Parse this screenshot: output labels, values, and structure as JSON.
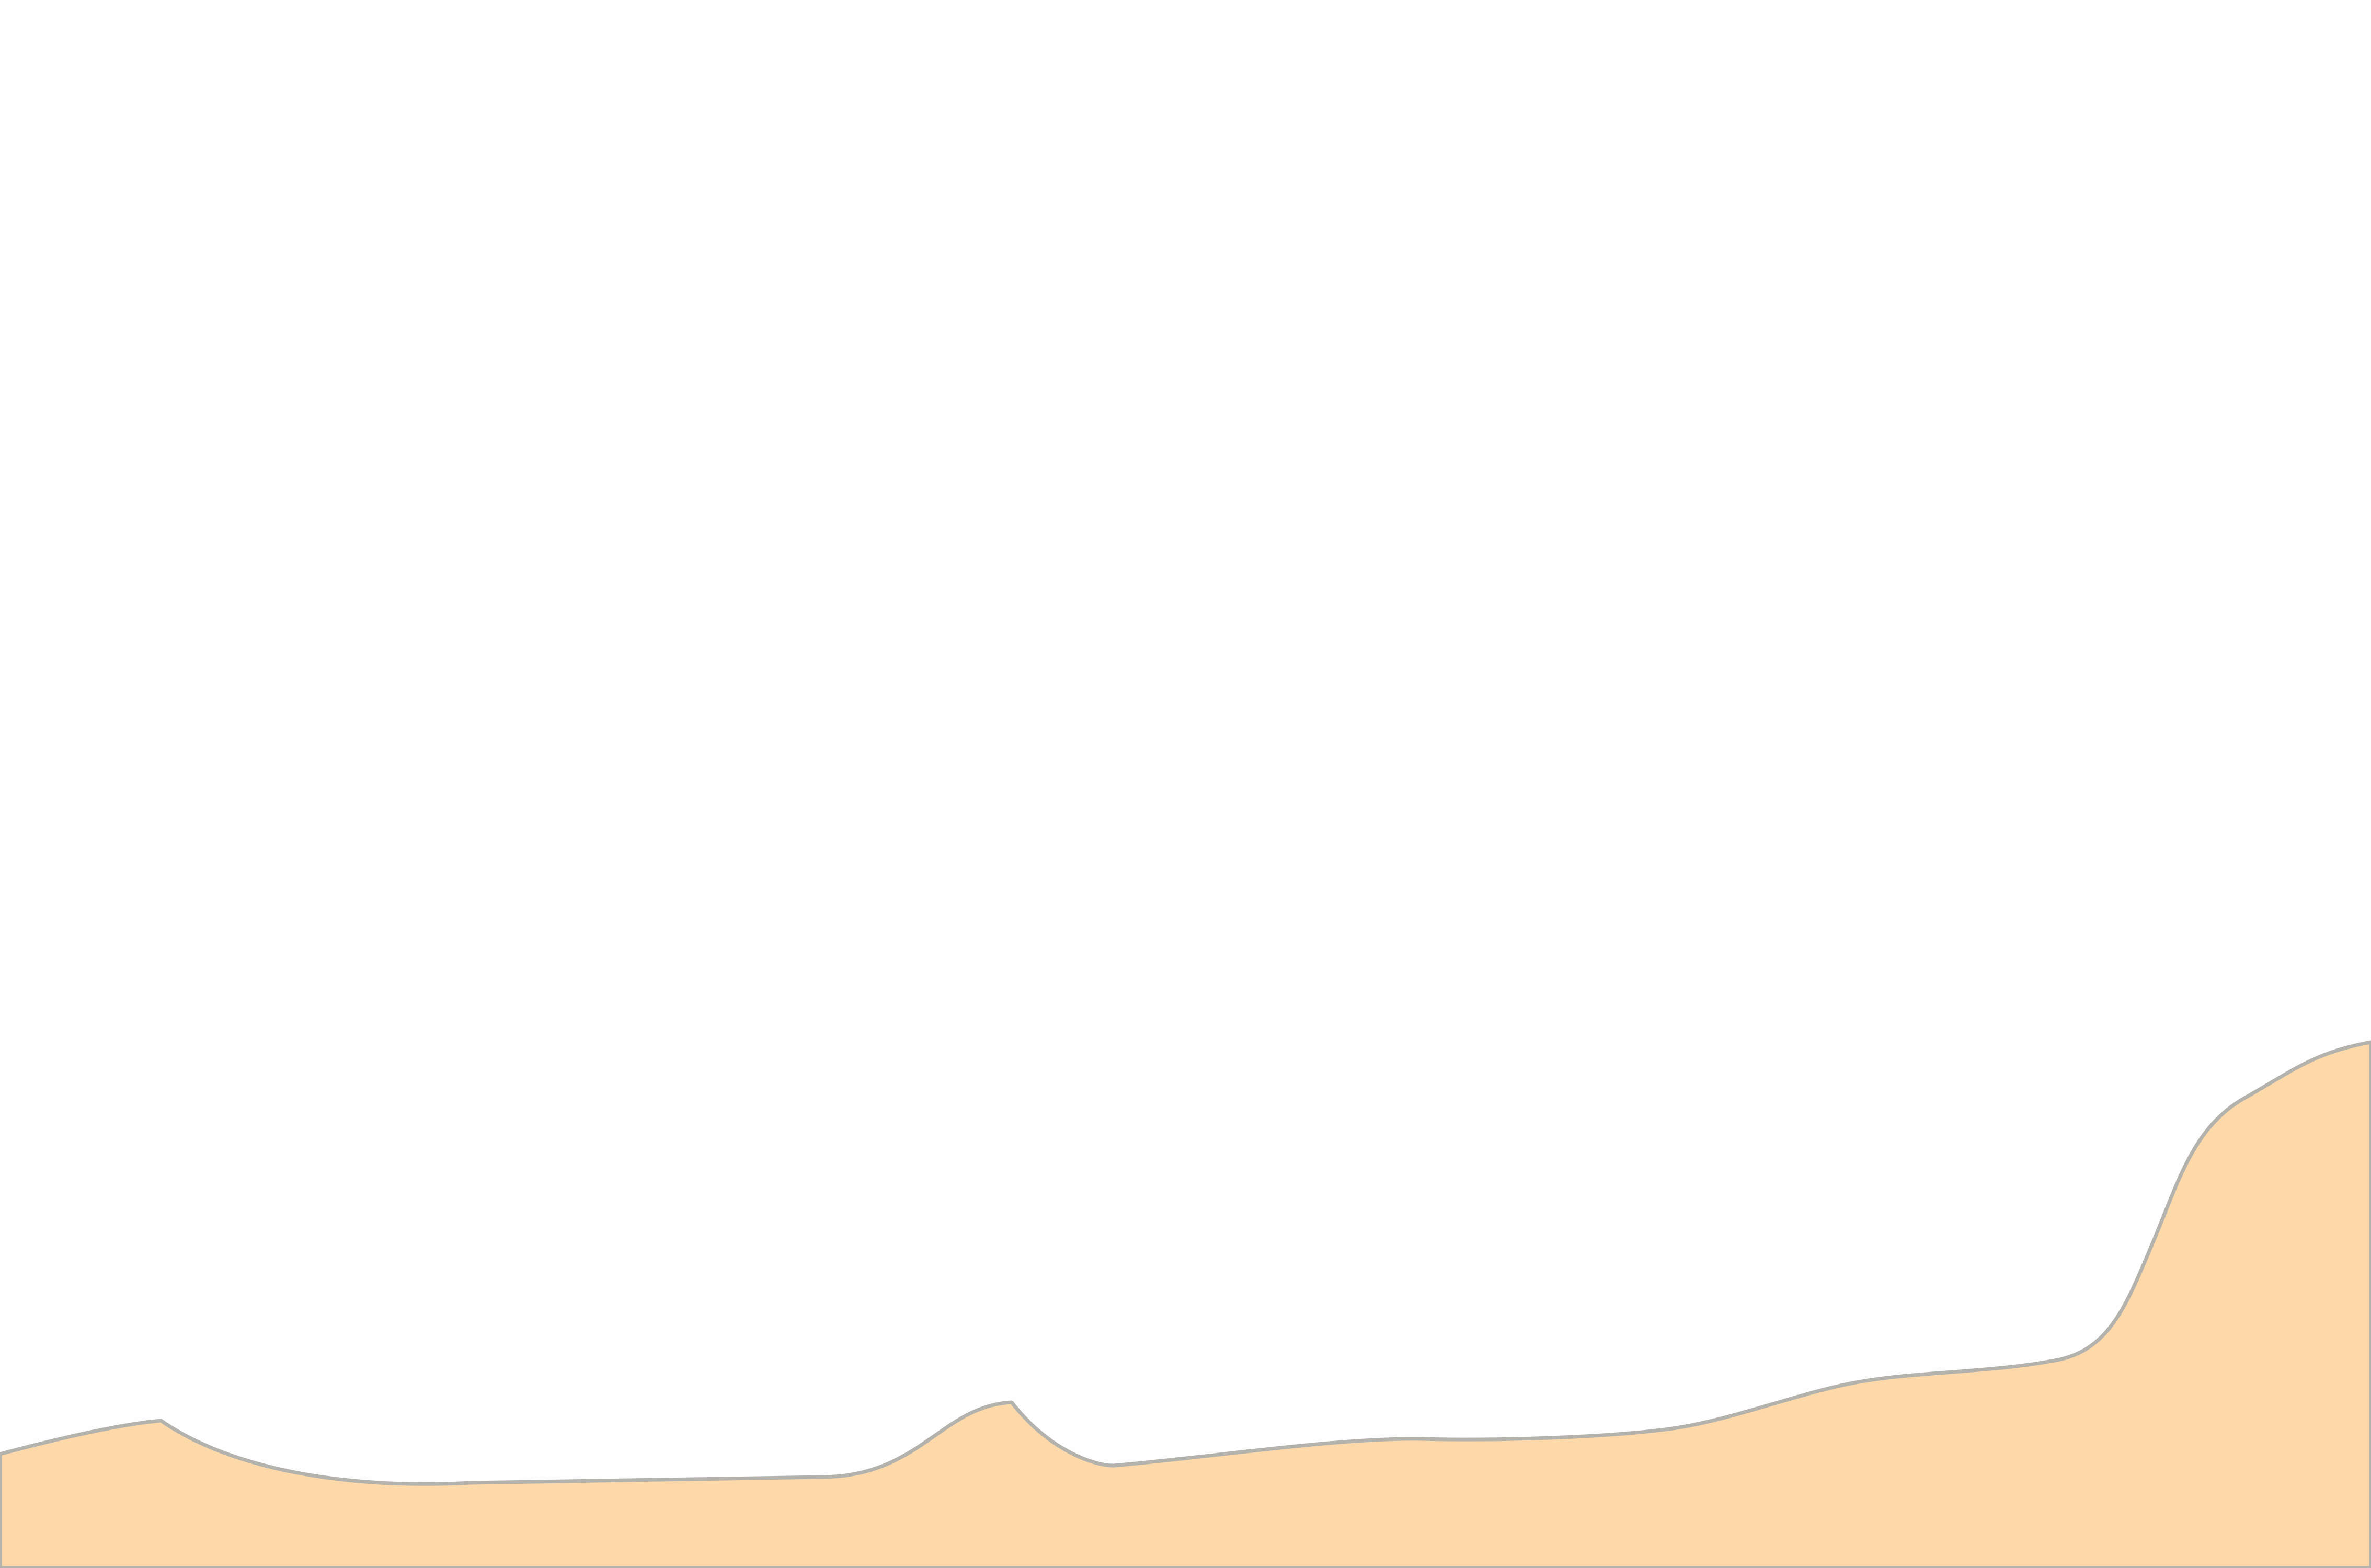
{
  "colors": {
    "background": "#fefefe",
    "terrain_fill": "#fdd9aa",
    "terrain_outline": "#b4b2ad"
  },
  "shapes": {
    "terrain": "terrain-silhouette"
  }
}
